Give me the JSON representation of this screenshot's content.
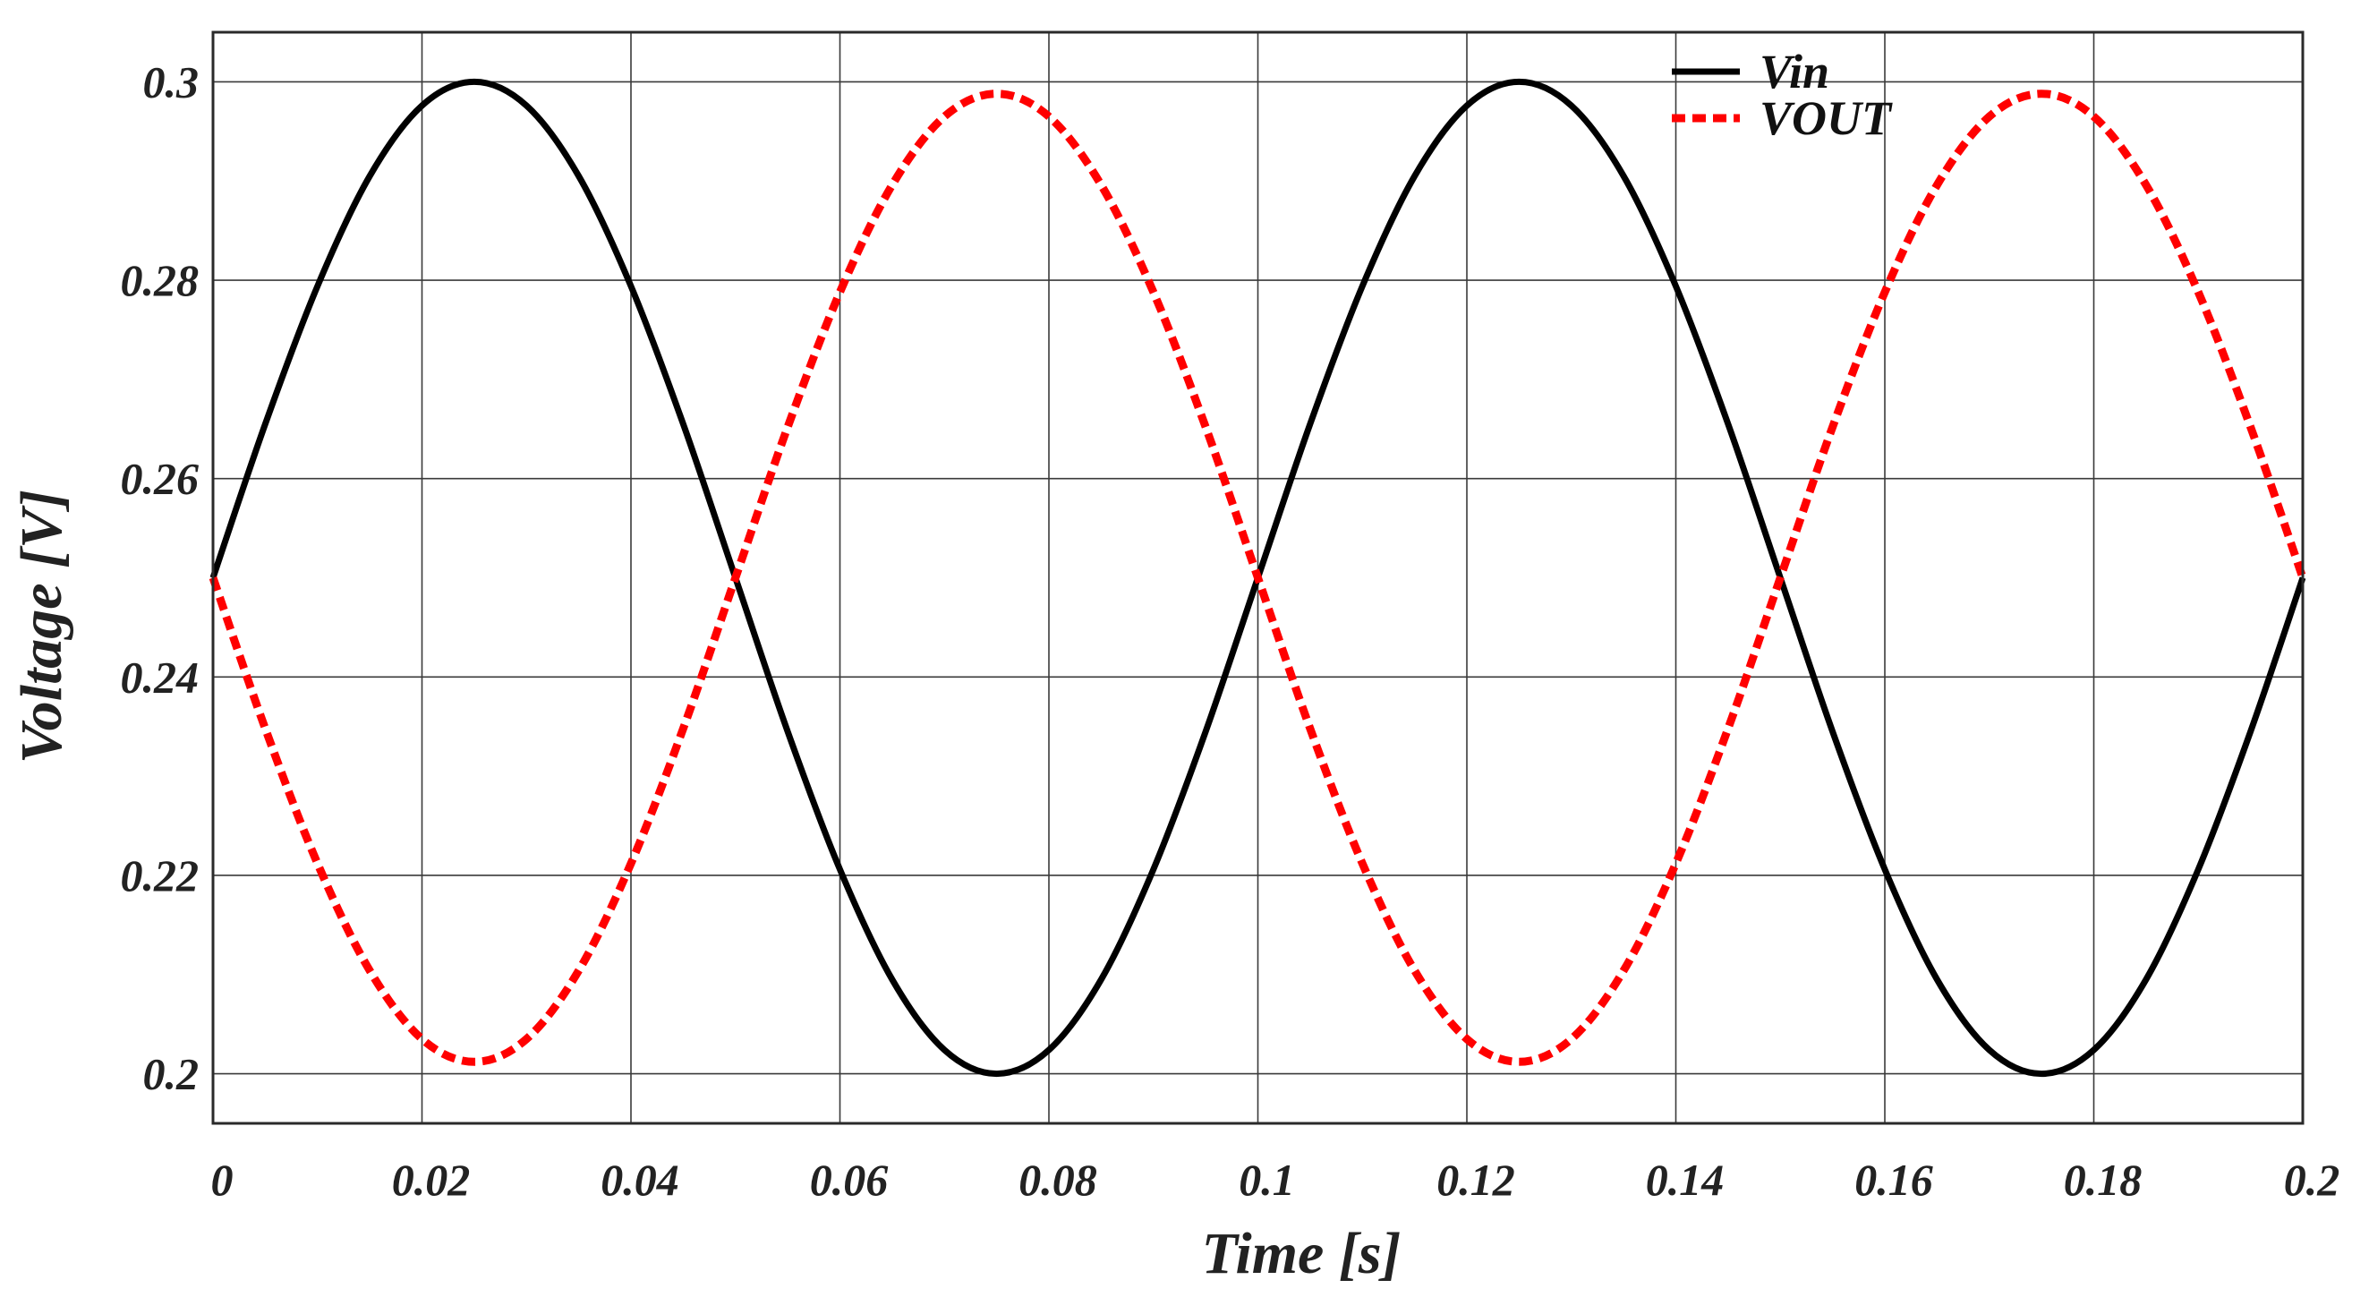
{
  "chart_data": {
    "type": "line",
    "title": "",
    "xlabel": "Time [s]",
    "ylabel": "Voltage [V]",
    "xlim": [
      0,
      0.2
    ],
    "ylim": [
      0.195,
      0.305
    ],
    "x_ticks": [
      0,
      0.02,
      0.04,
      0.06,
      0.08,
      0.1,
      0.12,
      0.14,
      0.16,
      0.18,
      0.2
    ],
    "x_tick_labels": [
      "0",
      "0.02",
      "0.04",
      "0.06",
      "0.08",
      "0.1",
      "0.12",
      "0.14",
      "0.16",
      "0.18",
      "0.2"
    ],
    "y_ticks": [
      0.2,
      0.22,
      0.24,
      0.26,
      0.28,
      0.3
    ],
    "y_tick_labels": [
      "0.2",
      "0.22",
      "0.24",
      "0.26",
      "0.28",
      "0.3"
    ],
    "grid": true,
    "legend_position": "top-right",
    "series": [
      {
        "name": "Vin",
        "color": "#000000",
        "style": "solid",
        "x": [
          0,
          0.005,
          0.01,
          0.015,
          0.02,
          0.025,
          0.03,
          0.035,
          0.04,
          0.045,
          0.05,
          0.055,
          0.06,
          0.065,
          0.07,
          0.075,
          0.08,
          0.085,
          0.09,
          0.095,
          0.1,
          0.105,
          0.11,
          0.115,
          0.12,
          0.125,
          0.13,
          0.135,
          0.14,
          0.145,
          0.15,
          0.155,
          0.16,
          0.165,
          0.17,
          0.175,
          0.18,
          0.185,
          0.19,
          0.195,
          0.2
        ],
        "values": [
          0.25,
          0.2655,
          0.2794,
          0.2905,
          0.2976,
          0.3,
          0.2976,
          0.2905,
          0.2794,
          0.2655,
          0.25,
          0.2345,
          0.2206,
          0.2095,
          0.2024,
          0.2,
          0.2024,
          0.2095,
          0.2206,
          0.2345,
          0.25,
          0.2655,
          0.2794,
          0.2905,
          0.2976,
          0.3,
          0.2976,
          0.2905,
          0.2794,
          0.2655,
          0.25,
          0.2345,
          0.2206,
          0.2095,
          0.2024,
          0.2,
          0.2024,
          0.2095,
          0.2206,
          0.2345,
          0.25
        ]
      },
      {
        "name": "VOUT",
        "color": "#ff0000",
        "style": "dashed",
        "x": [
          0,
          0.005,
          0.01,
          0.015,
          0.02,
          0.025,
          0.03,
          0.035,
          0.04,
          0.045,
          0.05,
          0.055,
          0.06,
          0.065,
          0.07,
          0.075,
          0.08,
          0.085,
          0.09,
          0.095,
          0.1,
          0.105,
          0.11,
          0.115,
          0.12,
          0.125,
          0.13,
          0.135,
          0.14,
          0.145,
          0.15,
          0.155,
          0.16,
          0.165,
          0.17,
          0.175,
          0.18,
          0.185,
          0.19,
          0.195,
          0.2
        ],
        "values": [
          0.25,
          0.2348,
          0.2212,
          0.2104,
          0.2035,
          0.2012,
          0.2035,
          0.2104,
          0.2212,
          0.2348,
          0.25,
          0.2652,
          0.2788,
          0.2896,
          0.2965,
          0.2988,
          0.2965,
          0.2896,
          0.2788,
          0.2652,
          0.25,
          0.2348,
          0.2212,
          0.2104,
          0.2035,
          0.2012,
          0.2035,
          0.2104,
          0.2212,
          0.2348,
          0.25,
          0.2652,
          0.2788,
          0.2896,
          0.2965,
          0.2988,
          0.2965,
          0.2896,
          0.2788,
          0.2652,
          0.25
        ]
      }
    ]
  }
}
